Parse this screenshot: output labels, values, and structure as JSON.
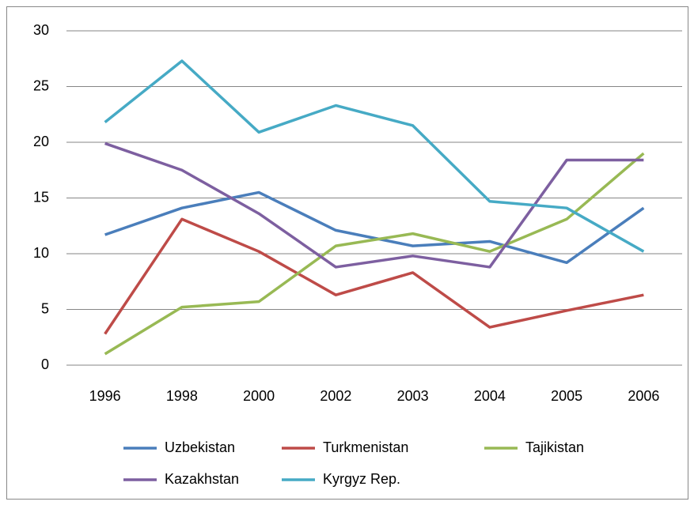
{
  "chart_data": {
    "type": "line",
    "categories": [
      "1996",
      "1998",
      "2000",
      "2002",
      "2003",
      "2004",
      "2005",
      "2006"
    ],
    "series": [
      {
        "name": "Uzbekistan",
        "color": "#4a7ebb",
        "values": [
          11.7,
          14.1,
          15.5,
          12.1,
          10.7,
          11.1,
          9.2,
          14.1
        ]
      },
      {
        "name": "Turkmenistan",
        "color": "#be4b48",
        "values": [
          2.8,
          13.1,
          10.2,
          6.3,
          8.3,
          3.4,
          4.9,
          6.3
        ]
      },
      {
        "name": "Tajikistan",
        "color": "#98b954",
        "values": [
          1.0,
          5.2,
          5.7,
          10.7,
          11.8,
          10.2,
          13.1,
          19.0
        ]
      },
      {
        "name": "Kazakhstan",
        "color": "#7d5fa0",
        "values": [
          19.9,
          17.5,
          13.6,
          8.8,
          9.8,
          8.8,
          18.4,
          18.4
        ]
      },
      {
        "name": "Kyrgyz Rep.",
        "color": "#46aac5",
        "values": [
          21.8,
          27.3,
          20.9,
          23.3,
          21.5,
          14.7,
          14.1,
          10.2
        ]
      }
    ],
    "ylim": [
      0,
      30
    ],
    "yticks": [
      0,
      5,
      10,
      15,
      20,
      25,
      30
    ],
    "grid": true,
    "legend": "bottom"
  }
}
